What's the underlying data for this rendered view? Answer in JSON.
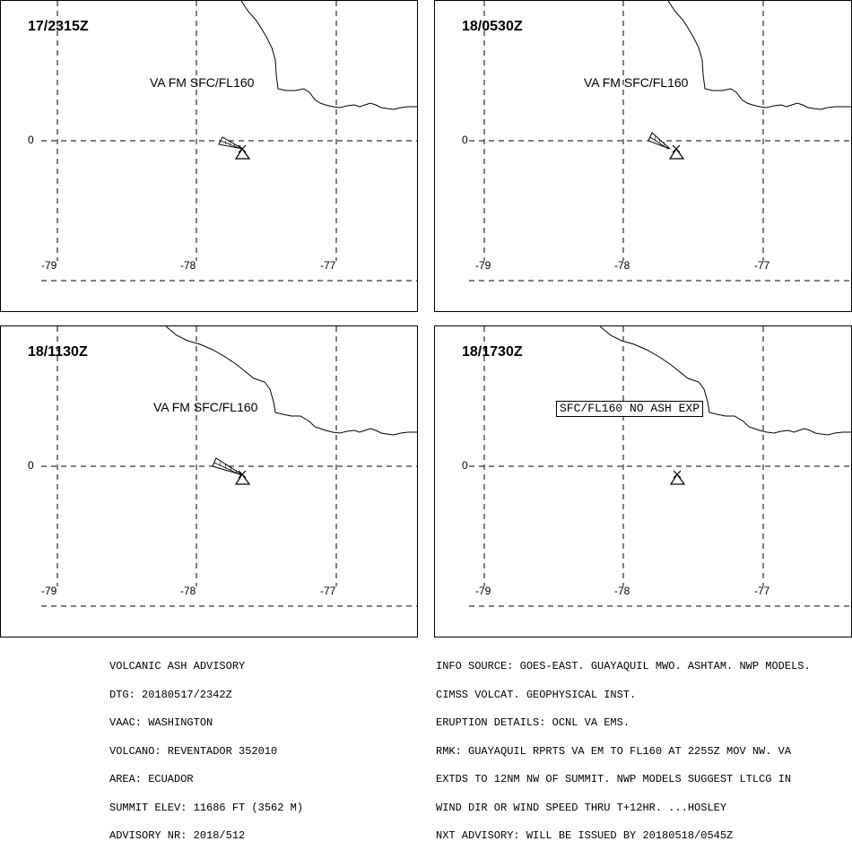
{
  "panels": [
    {
      "time": "17/2315Z",
      "label": "VA FM SFC/FL160",
      "label_style": "plain",
      "ash": true
    },
    {
      "time": "18/0530Z",
      "label": "VA FM SFC/FL160",
      "label_style": "plain",
      "ash": true
    },
    {
      "time": "18/1130Z",
      "label": "VA FM SFC/FL160",
      "label_style": "plain",
      "ash": true
    },
    {
      "time": "18/1730Z",
      "label": "SFC/FL160 NO ASH EXP",
      "label_style": "boxed",
      "ash": false
    }
  ],
  "axes": {
    "lon_ticks": [
      "-79",
      "-78",
      "-77"
    ],
    "lat_ticks": [
      "0"
    ]
  },
  "advisory_left": [
    "VOLCANIC ASH ADVISORY",
    "DTG: 20180517/2342Z",
    "VAAC: WASHINGTON",
    "VOLCANO: REVENTADOR 352010",
    "AREA: ECUADOR",
    "SUMMIT ELEV: 11686 FT (3562 M)",
    "ADVISORY NR: 2018/512"
  ],
  "advisory_right": [
    "INFO SOURCE: GOES-EAST. GUAYAQUIL MWO. ASHTAM. NWP MODELS.",
    "CIMSS VOLCAT. GEOPHYSICAL INST.",
    "ERUPTION DETAILS: OCNL VA EMS.",
    "RMK: GUAYAQUIL RPRTS VA EM TO FL160 AT 2255Z MOV NW. VA",
    "EXTDS TO 12NM NW OF SUMMIT. NWP MODELS SUGGEST LTLCG IN",
    "WIND DIR OR WIND SPEED THRU T+12HR. ...HOSLEY",
    "NXT ADVISORY: WILL BE ISSUED BY 20180518/0545Z"
  ]
}
